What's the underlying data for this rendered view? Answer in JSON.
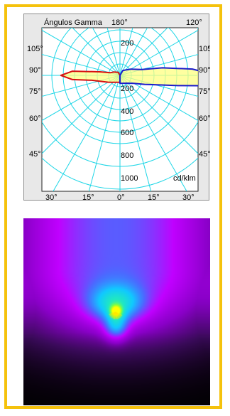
{
  "chart_data": {
    "type": "polar",
    "title": "Ángulos Gamma",
    "unit": "cd/klm",
    "top_left_angle": "180°",
    "top_right_angle": "120°",
    "left_angle_labels": [
      "105°",
      "90°",
      "75°",
      "60°",
      "45°"
    ],
    "right_angle_labels": [
      "105°",
      "90°",
      "75°",
      "60°",
      "45°"
    ],
    "bottom_angle_labels": [
      "30°",
      "15°",
      "0°",
      "15°",
      "30°"
    ],
    "radial_labels": [
      "200",
      "200",
      "400",
      "600",
      "800",
      "1000"
    ],
    "series": [
      {
        "color": "#d61010",
        "description": "red C-plane curve",
        "points": [
          {
            "gamma": 180,
            "cd": 0
          },
          {
            "gamma": 150,
            "cd": 30
          },
          {
            "gamma": 120,
            "cd": 60
          },
          {
            "gamma": 105,
            "cd": 90
          },
          {
            "gamma": 100,
            "cd": 180
          },
          {
            "gamma": 95,
            "cd": 420
          },
          {
            "gamma": 90,
            "cd": 520
          },
          {
            "gamma": 85,
            "cd": 420
          },
          {
            "gamma": 80,
            "cd": 250
          },
          {
            "gamma": 70,
            "cd": 160
          },
          {
            "gamma": 60,
            "cd": 120
          },
          {
            "gamma": 40,
            "cd": 80
          },
          {
            "gamma": 0,
            "cd": 60
          }
        ]
      },
      {
        "color": "#1a1acc",
        "description": "blue C-plane curve",
        "points": [
          {
            "gamma": 180,
            "cd": 0
          },
          {
            "gamma": 150,
            "cd": 50
          },
          {
            "gamma": 120,
            "cd": 110
          },
          {
            "gamma": 105,
            "cd": 200
          },
          {
            "gamma": 100,
            "cd": 380
          },
          {
            "gamma": 95,
            "cd": 640
          },
          {
            "gamma": 90,
            "cd": 850
          },
          {
            "gamma": 87,
            "cd": 920
          },
          {
            "gamma": 84,
            "cd": 880
          },
          {
            "gamma": 80,
            "cd": 520
          },
          {
            "gamma": 70,
            "cd": 230
          },
          {
            "gamma": 60,
            "cd": 140
          },
          {
            "gamma": 40,
            "cd": 90
          },
          {
            "gamma": 0,
            "cd": 70
          }
        ]
      }
    ]
  },
  "colors": {
    "frame": "#f5c20c",
    "panel_bg": "#e8e8e8",
    "grid": "#1ed6e6",
    "plot_bg": "#ffffff",
    "fill": "#ffff80"
  },
  "falsecolor": {
    "colormap": [
      "#000000",
      "#3a0a5a",
      "#8a00c8",
      "#c000ff",
      "#4a6aff",
      "#10c8ff",
      "#20e8c0",
      "#80ff40",
      "#ffff00"
    ]
  }
}
